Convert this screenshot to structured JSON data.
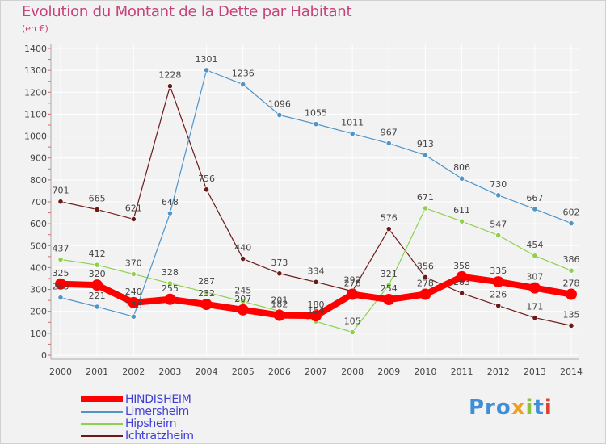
{
  "title": "Evolution du Montant de la Dette par Habitant",
  "subtitle": "(en €)",
  "logo": {
    "part1": "Pro",
    "part2": "x",
    "part3": "i",
    "part4": "t",
    "part5": "i"
  },
  "chart_data": {
    "type": "line",
    "title": "Evolution du Montant de la Dette par Habitant",
    "ylabel": "(en €)",
    "xlabel": "",
    "ylim": [
      0,
      1400
    ],
    "yticks": [
      0,
      100,
      200,
      300,
      400,
      500,
      600,
      700,
      800,
      900,
      1000,
      1100,
      1200,
      1300,
      1400
    ],
    "categories": [
      "2000",
      "2001",
      "2002",
      "2003",
      "2004",
      "2005",
      "2006",
      "2007",
      "2008",
      "2009",
      "2010",
      "2011",
      "2012",
      "2013",
      "2014"
    ],
    "series": [
      {
        "name": "HINDISHEIM",
        "color": "#ff0000",
        "values": [
          325,
          320,
          240,
          255,
          232,
          207,
          182,
          180,
          278,
          254,
          278,
          358,
          335,
          307,
          278
        ],
        "labels": [
          "325",
          "320",
          "240",
          "255",
          "232",
          "207",
          "182",
          "180",
          "278",
          "254",
          "278",
          "358",
          "335",
          "307",
          "278"
        ]
      },
      {
        "name": "Limersheim",
        "color": "#4f95c8",
        "values": [
          263,
          221,
          176,
          648,
          1301,
          1236,
          1096,
          1055,
          1011,
          967,
          913,
          806,
          730,
          667,
          602
        ],
        "labels": [
          "263",
          "221",
          "176",
          "648",
          "1301",
          "1236",
          "1096",
          "1055",
          "1011",
          "967",
          "913",
          "806",
          "730",
          "667",
          "602"
        ]
      },
      {
        "name": "Hipsheim",
        "color": "#8fd14f",
        "values": [
          437,
          412,
          370,
          328,
          287,
          245,
          201,
          154,
          105,
          321,
          671,
          611,
          547,
          454,
          386
        ],
        "labels": [
          "437",
          "412",
          "370",
          "328",
          "287",
          "245",
          "201",
          "154",
          "105",
          "321",
          "671",
          "611",
          "547",
          "454",
          "386"
        ]
      },
      {
        "name": "Ichtratzheim",
        "color": "#6b1a1a",
        "values": [
          701,
          665,
          621,
          1228,
          756,
          440,
          373,
          334,
          292,
          576,
          356,
          283,
          226,
          171,
          135
        ],
        "labels": [
          "701",
          "665",
          "621",
          "1228",
          "756",
          "440",
          "373",
          "334",
          "292",
          "576",
          "356",
          "283",
          "226",
          "171",
          "135"
        ]
      }
    ],
    "legend_position": "bottom-left",
    "grid": true
  }
}
